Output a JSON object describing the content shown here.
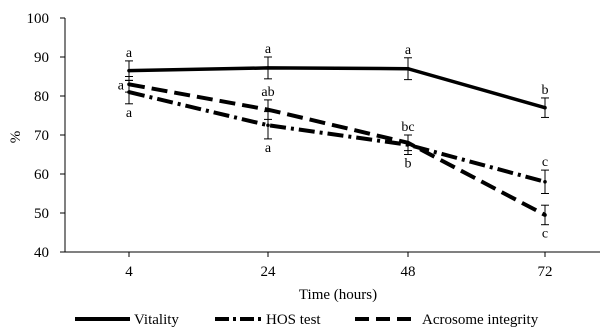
{
  "chart_data": {
    "type": "line",
    "title": "",
    "xlabel": "Time (hours)",
    "ylabel": "%",
    "categories": [
      "4",
      "24",
      "48",
      "72"
    ],
    "ylim": [
      40,
      100
    ],
    "yticks": [
      40,
      50,
      60,
      70,
      80,
      90,
      100
    ],
    "grid": false,
    "legend_position": "bottom",
    "series": [
      {
        "name": "Vitality",
        "style": "solid",
        "values": [
          86.5,
          87.2,
          87.0,
          77.0
        ],
        "errors": [
          2.5,
          2.8,
          2.8,
          2.5
        ],
        "labels": [
          "a",
          "a",
          "a",
          "b"
        ],
        "label_positions": [
          "above",
          "above",
          "above",
          "above"
        ]
      },
      {
        "name": "HOS test",
        "style": "dash-dot",
        "values": [
          81.0,
          72.5,
          67.5,
          58.0
        ],
        "errors": [
          3.0,
          3.5,
          2.5,
          3.0
        ],
        "labels": [
          "a",
          "a",
          "b",
          "c"
        ],
        "label_positions": [
          "below",
          "below",
          "below",
          "above"
        ]
      },
      {
        "name": "Acrosome integrity",
        "style": "dashed",
        "values": [
          83.0,
          76.5,
          68.0,
          49.5
        ],
        "errors": [
          2.0,
          2.5,
          2.0,
          2.5
        ],
        "labels": [
          "a",
          "ab",
          "bc",
          "c"
        ],
        "label_positions": [
          "left",
          "above",
          "above",
          "below"
        ]
      }
    ]
  }
}
